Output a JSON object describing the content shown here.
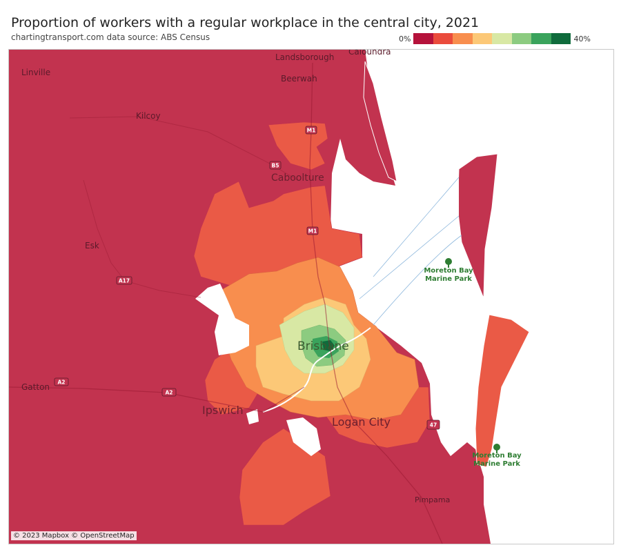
{
  "title": "Proportion of workers with a regular workplace in the central city, 2021",
  "subtitle": "chartingtransport.com  data source: ABS Census",
  "legend": {
    "min_label": "0%",
    "max_label": "40%",
    "colors": [
      "#b5123b",
      "#ea4b3c",
      "#f88e4e",
      "#fcc877",
      "#d8e8a4",
      "#8ccb80",
      "#3aa35c",
      "#0f6b3c"
    ]
  },
  "map": {
    "places": {
      "linville": "Linville",
      "landsborough": "Landsborough",
      "caloundra": "Caloundra",
      "beerwah": "Beerwah",
      "kilcoy": "Kilcoy",
      "caboolture": "Caboolture",
      "esk": "Esk",
      "brisbane": "Brisbane",
      "gatton": "Gatton",
      "ipswich": "Ipswich",
      "logan_city": "Logan City",
      "pimpama": "Pimpama"
    },
    "parks": {
      "north_1": "Moreton Bay",
      "north_2": "Marine Park",
      "south_1": "Moreton Bay",
      "south_2": "Marine Park"
    },
    "roads": {
      "m1_north": "M1",
      "b5": "B5",
      "m1_mid": "M1",
      "a17": "A17",
      "a2_west": "A2",
      "a2_mid": "A2",
      "route_47": "47"
    },
    "attribution": "© 2023 Mapbox © OpenStreetMap"
  }
}
